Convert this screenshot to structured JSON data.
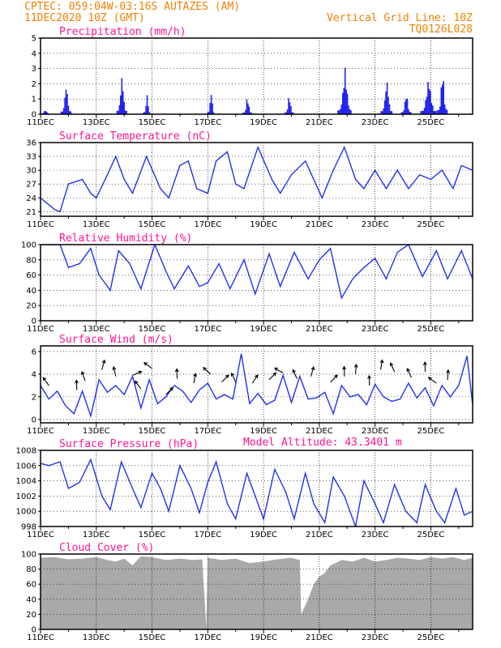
{
  "header": {
    "line1": "CPTEC:   059:04W-03:16S   AUTAZES (AM)",
    "line2": "11DEC2020 10Z (GMT)",
    "grid_note": "Vertical Grid Line: 10Z",
    "code": "TQ0126L028",
    "color": "#f08000"
  },
  "colors": {
    "title": "#ff1493",
    "line": "#2233ee",
    "bar": "#2222ee",
    "cloud": "#a9a9a9"
  },
  "chart_data": [
    {
      "type": "bar",
      "title": "Precipitation (mm/h)",
      "ylim": [
        0,
        5
      ],
      "yticks": [
        "0",
        "1",
        "2",
        "3",
        "4",
        "5"
      ],
      "xticks": [
        "11DEC",
        "13DEC",
        "15DEC",
        "17DEC",
        "19DEC",
        "21DEC",
        "23DEC",
        "25DEC"
      ],
      "x_days": [
        0,
        15.5
      ],
      "events": [
        {
          "day": 0.15,
          "peak": 0.3,
          "width": 0.4
        },
        {
          "day": 0.9,
          "peak": 2.2,
          "width": 0.35
        },
        {
          "day": 2.9,
          "peak": 2.8,
          "width": 0.35
        },
        {
          "day": 3.8,
          "peak": 1.4,
          "width": 0.25
        },
        {
          "day": 6.1,
          "peak": 1.7,
          "width": 0.25
        },
        {
          "day": 7.4,
          "peak": 1.4,
          "width": 0.3
        },
        {
          "day": 8.9,
          "peak": 1.5,
          "width": 0.3
        },
        {
          "day": 10.9,
          "peak": 3.2,
          "width": 0.5
        },
        {
          "day": 12.4,
          "peak": 2.5,
          "width": 0.4
        },
        {
          "day": 13.1,
          "peak": 1.6,
          "width": 0.35
        },
        {
          "day": 13.9,
          "peak": 2.6,
          "width": 0.55
        },
        {
          "day": 14.4,
          "peak": 3.4,
          "width": 0.35
        }
      ]
    },
    {
      "type": "line",
      "title": "Surface Temperature (nC)",
      "ylim": [
        20,
        36
      ],
      "yticks": [
        "21",
        "24",
        "27",
        "30",
        "33",
        "36"
      ],
      "ytick_values": [
        21,
        24,
        27,
        30,
        33,
        36
      ],
      "xticks": [
        "11DEC",
        "13DEC",
        "15DEC",
        "17DEC",
        "19DEC",
        "21DEC",
        "23DEC",
        "25DEC"
      ],
      "x_days": [
        0,
        15.5
      ],
      "points": [
        [
          0,
          24
        ],
        [
          0.5,
          21.5
        ],
        [
          0.7,
          21
        ],
        [
          1,
          27
        ],
        [
          1.5,
          28
        ],
        [
          1.8,
          25
        ],
        [
          2,
          24
        ],
        [
          2.4,
          29
        ],
        [
          2.7,
          33
        ],
        [
          3,
          28
        ],
        [
          3.3,
          25
        ],
        [
          3.8,
          33
        ],
        [
          4.3,
          26
        ],
        [
          4.6,
          24
        ],
        [
          5,
          31
        ],
        [
          5.3,
          32
        ],
        [
          5.6,
          26
        ],
        [
          6,
          25
        ],
        [
          6.3,
          32
        ],
        [
          6.7,
          34
        ],
        [
          7,
          27
        ],
        [
          7.3,
          26
        ],
        [
          7.8,
          35
        ],
        [
          8.3,
          28
        ],
        [
          8.6,
          25
        ],
        [
          9,
          29
        ],
        [
          9.5,
          32
        ],
        [
          9.8,
          28
        ],
        [
          10.1,
          24
        ],
        [
          10.5,
          30
        ],
        [
          10.9,
          35
        ],
        [
          11.3,
          28
        ],
        [
          11.6,
          26
        ],
        [
          12,
          30
        ],
        [
          12.4,
          26
        ],
        [
          12.8,
          30
        ],
        [
          13.2,
          26
        ],
        [
          13.6,
          29
        ],
        [
          14,
          28
        ],
        [
          14.4,
          30
        ],
        [
          14.8,
          26
        ],
        [
          15.1,
          31
        ],
        [
          15.5,
          30
        ]
      ]
    },
    {
      "type": "line",
      "title": "Relative Humidity (%)",
      "ylim": [
        0,
        100
      ],
      "yticks": [
        "0",
        "20",
        "40",
        "60",
        "80",
        "100"
      ],
      "ytick_values": [
        0,
        20,
        40,
        60,
        80,
        100
      ],
      "xticks": [
        "11DEC",
        "13DEC",
        "15DEC",
        "17DEC",
        "19DEC",
        "21DEC",
        "23DEC",
        "25DEC"
      ],
      "x_days": [
        0,
        15.5
      ],
      "points": [
        [
          0,
          100
        ],
        [
          0.7,
          100
        ],
        [
          1,
          70
        ],
        [
          1.4,
          75
        ],
        [
          1.8,
          95
        ],
        [
          2.1,
          60
        ],
        [
          2.5,
          40
        ],
        [
          2.8,
          92
        ],
        [
          3.2,
          75
        ],
        [
          3.6,
          42
        ],
        [
          4.1,
          100
        ],
        [
          4.5,
          65
        ],
        [
          4.8,
          42
        ],
        [
          5.3,
          72
        ],
        [
          5.7,
          45
        ],
        [
          6,
          50
        ],
        [
          6.4,
          75
        ],
        [
          6.8,
          42
        ],
        [
          7.3,
          80
        ],
        [
          7.7,
          35
        ],
        [
          8.2,
          88
        ],
        [
          8.6,
          45
        ],
        [
          9.1,
          90
        ],
        [
          9.6,
          55
        ],
        [
          10,
          80
        ],
        [
          10.4,
          95
        ],
        [
          10.8,
          30
        ],
        [
          11.2,
          55
        ],
        [
          11.6,
          70
        ],
        [
          12,
          82
        ],
        [
          12.4,
          55
        ],
        [
          12.8,
          90
        ],
        [
          13.2,
          100
        ],
        [
          13.7,
          58
        ],
        [
          14.2,
          92
        ],
        [
          14.6,
          55
        ],
        [
          15.1,
          92
        ],
        [
          15.5,
          55
        ]
      ]
    },
    {
      "type": "line",
      "title": "Surface Wind (m/s)",
      "ylim": [
        -0.3,
        6.5
      ],
      "yticks": [
        "0",
        "2",
        "4",
        "6"
      ],
      "ytick_values": [
        0,
        2,
        4,
        6
      ],
      "xticks": [
        "11DEC",
        "13DEC",
        "15DEC",
        "17DEC",
        "19DEC",
        "21DEC",
        "23DEC",
        "25DEC"
      ],
      "x_days": [
        0,
        15.5
      ],
      "points": [
        [
          0,
          3
        ],
        [
          0.3,
          1.8
        ],
        [
          0.6,
          2.5
        ],
        [
          0.9,
          1.2
        ],
        [
          1.2,
          0.5
        ],
        [
          1.5,
          2.5
        ],
        [
          1.8,
          0.3
        ],
        [
          2.1,
          3.5
        ],
        [
          2.4,
          2.4
        ],
        [
          2.7,
          3
        ],
        [
          3,
          2.2
        ],
        [
          3.3,
          3.8
        ],
        [
          3.6,
          1
        ],
        [
          3.9,
          3.5
        ],
        [
          4.2,
          1.4
        ],
        [
          4.5,
          2
        ],
        [
          4.8,
          3
        ],
        [
          5.1,
          2.5
        ],
        [
          5.4,
          1.5
        ],
        [
          5.7,
          2.6
        ],
        [
          6,
          3.2
        ],
        [
          6.3,
          1.8
        ],
        [
          6.6,
          2.2
        ],
        [
          6.9,
          1.8
        ],
        [
          7.2,
          5.8
        ],
        [
          7.5,
          1.4
        ],
        [
          7.8,
          2.3
        ],
        [
          8.1,
          1.3
        ],
        [
          8.4,
          1.7
        ],
        [
          8.7,
          3.9
        ],
        [
          9,
          1.5
        ],
        [
          9.3,
          3.8
        ],
        [
          9.6,
          1.8
        ],
        [
          9.9,
          1.9
        ],
        [
          10.2,
          2.4
        ],
        [
          10.5,
          0.5
        ],
        [
          10.8,
          3
        ],
        [
          11.1,
          2
        ],
        [
          11.4,
          2.2
        ],
        [
          11.7,
          1.3
        ],
        [
          12,
          3.1
        ],
        [
          12.3,
          2
        ],
        [
          12.6,
          1.6
        ],
        [
          12.9,
          1.8
        ],
        [
          13.2,
          3.2
        ],
        [
          13.5,
          1.9
        ],
        [
          13.8,
          2.8
        ],
        [
          14.1,
          1.2
        ],
        [
          14.4,
          3
        ],
        [
          14.7,
          2
        ],
        [
          15,
          3
        ],
        [
          15.3,
          5.6
        ],
        [
          15.5,
          1.3
        ]
      ],
      "arrows": [
        [
          0.3,
          3.0,
          2.2
        ],
        [
          1.3,
          2.6,
          1.6
        ],
        [
          1.6,
          3.4,
          1.9
        ],
        [
          2.2,
          4.4,
          1.3
        ],
        [
          2.7,
          3.8,
          1.8
        ],
        [
          3.3,
          3.9,
          0.4
        ],
        [
          3.6,
          2.7,
          2.2
        ],
        [
          4.0,
          4.5,
          2.5
        ],
        [
          4.5,
          2.2,
          0.8
        ],
        [
          4.9,
          3.6,
          1.6
        ],
        [
          5.5,
          3.2,
          1.4
        ],
        [
          6.1,
          4.0,
          2.4
        ],
        [
          6.5,
          3.3,
          0.8
        ],
        [
          7.0,
          3.3,
          2.0
        ],
        [
          7.6,
          3.2,
          1.0
        ],
        [
          8.2,
          3.5,
          0.8
        ],
        [
          8.7,
          4.1,
          2.6
        ],
        [
          9.2,
          3.6,
          2.0
        ],
        [
          9.7,
          3.8,
          1.3
        ],
        [
          10.4,
          3.3,
          0.8
        ],
        [
          10.9,
          3.8,
          1.6
        ],
        [
          11.3,
          4.0,
          1.5
        ],
        [
          11.8,
          3.0,
          1.6
        ],
        [
          12.2,
          4.4,
          1.4
        ],
        [
          12.7,
          4.2,
          2.0
        ],
        [
          13.3,
          3.7,
          2.0
        ],
        [
          13.8,
          4.2,
          1.6
        ],
        [
          14.2,
          3.2,
          2.5
        ],
        [
          14.6,
          3.5,
          1.5
        ]
      ]
    },
    {
      "type": "line",
      "title": "Surface Pressure (hPa)",
      "annotation": "Model Altitude: 43.3401  m",
      "ylim": [
        998,
        1008
      ],
      "yticks": [
        "998",
        "1000",
        "1002",
        "1004",
        "1006",
        "1008"
      ],
      "ytick_values": [
        998,
        1000,
        1002,
        1004,
        1006,
        1008
      ],
      "xticks": [
        "11DEC",
        "13DEC",
        "15DEC",
        "17DEC",
        "19DEC",
        "21DEC",
        "23DEC",
        "25DEC"
      ],
      "x_days": [
        0,
        15.5
      ],
      "points": [
        [
          0,
          1006.3
        ],
        [
          0.3,
          1006
        ],
        [
          0.7,
          1006.5
        ],
        [
          1,
          1003
        ],
        [
          1.4,
          1003.8
        ],
        [
          1.8,
          1006.8
        ],
        [
          2.2,
          1002
        ],
        [
          2.5,
          1000.2
        ],
        [
          2.9,
          1006.5
        ],
        [
          3.3,
          1003
        ],
        [
          3.6,
          1000.5
        ],
        [
          4,
          1005
        ],
        [
          4.3,
          1003
        ],
        [
          4.6,
          1000
        ],
        [
          5,
          1006
        ],
        [
          5.4,
          1003
        ],
        [
          5.7,
          999.8
        ],
        [
          6,
          1003.8
        ],
        [
          6.3,
          1006.5
        ],
        [
          6.7,
          1001
        ],
        [
          7,
          999
        ],
        [
          7.4,
          1005
        ],
        [
          7.7,
          1002
        ],
        [
          8,
          999
        ],
        [
          8.4,
          1005.5
        ],
        [
          8.8,
          1002.5
        ],
        [
          9.1,
          999
        ],
        [
          9.5,
          1005
        ],
        [
          9.8,
          1001
        ],
        [
          10.2,
          998.5
        ],
        [
          10.5,
          1004.5
        ],
        [
          10.9,
          1002
        ],
        [
          11.3,
          998
        ],
        [
          11.6,
          1004
        ],
        [
          12,
          1001
        ],
        [
          12.3,
          998.5
        ],
        [
          12.7,
          1003.5
        ],
        [
          13.1,
          1000
        ],
        [
          13.5,
          998.5
        ],
        [
          13.8,
          1003.5
        ],
        [
          14.2,
          1000
        ],
        [
          14.5,
          998.5
        ],
        [
          14.9,
          1003
        ],
        [
          15.2,
          999.5
        ],
        [
          15.5,
          1000
        ]
      ]
    },
    {
      "type": "area",
      "title": "Cloud Cover (%)",
      "ylim": [
        0,
        100
      ],
      "yticks": [
        "0",
        "20",
        "40",
        "60",
        "80",
        "100"
      ],
      "ytick_values": [
        0,
        20,
        40,
        60,
        80,
        100
      ],
      "xticks": [
        "11DEC",
        "13DEC",
        "15DEC",
        "17DEC",
        "19DEC",
        "21DEC",
        "23DEC",
        "25DEC"
      ],
      "x_days": [
        0,
        15.5
      ],
      "points": [
        [
          0,
          95
        ],
        [
          0.5,
          96
        ],
        [
          1,
          93
        ],
        [
          1.5,
          94
        ],
        [
          2,
          96
        ],
        [
          2.4,
          92
        ],
        [
          2.7,
          90
        ],
        [
          3,
          94
        ],
        [
          3.3,
          85
        ],
        [
          3.6,
          97
        ],
        [
          4,
          96
        ],
        [
          4.5,
          92
        ],
        [
          5,
          94
        ],
        [
          5.5,
          92
        ],
        [
          5.8,
          93
        ],
        [
          5.95,
          2
        ],
        [
          6.0,
          95
        ],
        [
          6.5,
          92
        ],
        [
          7,
          94
        ],
        [
          7.5,
          88
        ],
        [
          8,
          90
        ],
        [
          8.5,
          93
        ],
        [
          9,
          95
        ],
        [
          9.3,
          92
        ],
        [
          9.35,
          20
        ],
        [
          9.6,
          40
        ],
        [
          9.8,
          60
        ],
        [
          10,
          70
        ],
        [
          10.2,
          75
        ],
        [
          10.4,
          85
        ],
        [
          10.8,
          92
        ],
        [
          11.2,
          90
        ],
        [
          11.6,
          95
        ],
        [
          12,
          90
        ],
        [
          12.4,
          92
        ],
        [
          12.8,
          95
        ],
        [
          13.2,
          94
        ],
        [
          13.6,
          92
        ],
        [
          14,
          96
        ],
        [
          14.4,
          94
        ],
        [
          14.8,
          96
        ],
        [
          15.2,
          92
        ],
        [
          15.5,
          95
        ]
      ]
    }
  ]
}
